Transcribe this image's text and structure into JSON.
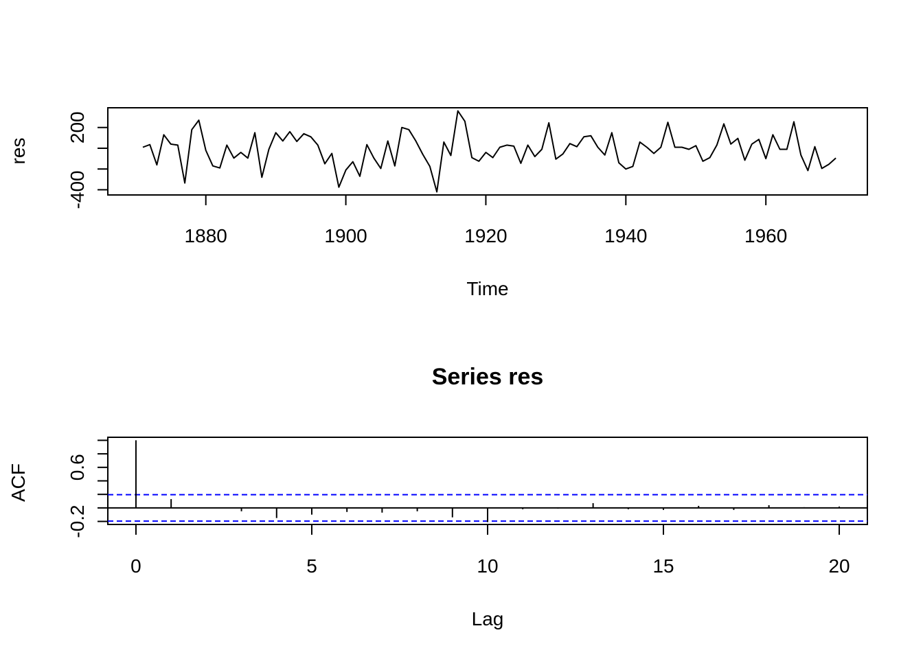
{
  "chart_data": [
    {
      "type": "line",
      "title": "",
      "xlabel": "Time",
      "ylabel": "res",
      "xlim": [
        1866,
        1974.5
      ],
      "ylim": [
        -450,
        390
      ],
      "x_ticks": [
        1880,
        1900,
        1920,
        1940,
        1960
      ],
      "y_ticks": [
        -400,
        -200,
        0,
        200
      ],
      "y_tick_labels": [
        "-400",
        "",
        "",
        "200"
      ],
      "grid": false,
      "legend": "none",
      "line_color": "#000000",
      "series": [
        {
          "x": [
            1871,
            1872,
            1873,
            1874,
            1875,
            1876,
            1877,
            1878,
            1879,
            1880,
            1881,
            1882,
            1883,
            1884,
            1885,
            1886,
            1887,
            1888,
            1889,
            1890,
            1891,
            1892,
            1893,
            1894,
            1895,
            1896,
            1897,
            1898,
            1899,
            1900,
            1901,
            1902,
            1903,
            1904,
            1905,
            1906,
            1907,
            1908,
            1909,
            1910,
            1911,
            1912,
            1913,
            1914,
            1915,
            1916,
            1917,
            1918,
            1919,
            1920,
            1921,
            1922,
            1923,
            1924,
            1925,
            1926,
            1927,
            1928,
            1929,
            1930,
            1931,
            1932,
            1933,
            1934,
            1935,
            1936,
            1937,
            1938,
            1939,
            1940,
            1941,
            1942,
            1943,
            1944,
            1945,
            1946,
            1947,
            1948,
            1949,
            1950,
            1951,
            1952,
            1953,
            1954,
            1955,
            1956,
            1957,
            1958,
            1959,
            1960,
            1961,
            1962,
            1963,
            1964,
            1965,
            1966,
            1967,
            1968,
            1969,
            1970
          ],
          "y": [
            10,
            35,
            -160,
            130,
            40,
            30,
            -335,
            180,
            270,
            -20,
            -170,
            -190,
            30,
            -95,
            -40,
            -95,
            150,
            -280,
            -10,
            150,
            70,
            160,
            65,
            140,
            110,
            30,
            -150,
            -50,
            -375,
            -210,
            -130,
            -270,
            35,
            -95,
            -195,
            70,
            -170,
            200,
            180,
            70,
            -60,
            -175,
            -420,
            60,
            -70,
            360,
            260,
            -90,
            -125,
            -40,
            -90,
            10,
            30,
            20,
            -145,
            30,
            -80,
            -10,
            245,
            -105,
            -55,
            45,
            15,
            110,
            120,
            10,
            -65,
            150,
            -140,
            -200,
            -175,
            60,
            10,
            -50,
            10,
            250,
            10,
            10,
            -10,
            25,
            -125,
            -90,
            30,
            235,
            40,
            95,
            -115,
            40,
            85,
            -100,
            130,
            -10,
            -10,
            255,
            -65,
            -215,
            15,
            -195,
            -155,
            -95
          ]
        }
      ]
    },
    {
      "type": "bar",
      "title": "Series  res",
      "xlabel": "Lag",
      "ylabel": "ACF",
      "xlim": [
        -0.8,
        20.8
      ],
      "ylim": [
        -0.245,
        1.045
      ],
      "x_ticks": [
        0,
        5,
        10,
        15,
        20
      ],
      "y_ticks": [
        -0.2,
        0.0,
        0.2,
        0.4,
        0.6,
        0.8,
        1.0
      ],
      "y_tick_labels": [
        "-0.2",
        "",
        "",
        "",
        "0.6",
        "",
        ""
      ],
      "confidence_band": 0.196,
      "confidence_color": "#0000ff",
      "grid": false,
      "legend": "none",
      "lags": [
        0,
        1,
        2,
        3,
        4,
        5,
        6,
        7,
        8,
        9,
        10,
        11,
        12,
        13,
        14,
        15,
        16,
        17,
        18,
        19,
        20
      ],
      "values": [
        1.0,
        0.13,
        0.0,
        -0.05,
        -0.15,
        -0.1,
        -0.06,
        -0.07,
        -0.05,
        -0.14,
        -0.21,
        -0.02,
        -0.01,
        0.07,
        -0.02,
        -0.03,
        0.03,
        -0.03,
        0.04,
        0.01,
        0.02
      ]
    }
  ]
}
